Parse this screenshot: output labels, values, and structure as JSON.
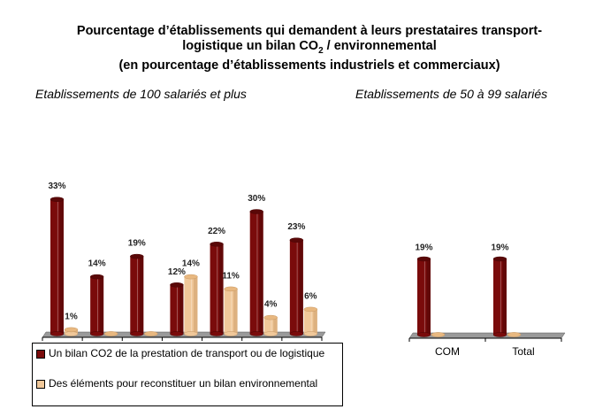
{
  "title": {
    "line1": "Pourcentage d’établissements qui demandent à leurs prestataires transport-",
    "line2_a": "logistique un bilan CO",
    "line2_sub": "2",
    "line2_b": " / environnemental",
    "line3": "(en pourcentage d’établissements industriels et commerciaux)"
  },
  "colors": {
    "series1": "#7a0b0b",
    "series2": "#f0c89a"
  },
  "chart_data": [
    {
      "type": "bar",
      "title": "Etablissements de 100 salariés et plus",
      "categories": [
        "",
        "",
        "",
        "",
        "",
        "",
        ""
      ],
      "series": [
        {
          "name": "Un bilan CO2 de la prestation de transport ou de logistique",
          "values": [
            33,
            14,
            19,
            12,
            22,
            30,
            23
          ],
          "labels": [
            "33%",
            "14%",
            "19%",
            "12%",
            "22%",
            "30%",
            "23%"
          ]
        },
        {
          "name": "Des éléments pour reconstituer un bilan environnemental",
          "values": [
            1,
            0,
            0,
            14,
            11,
            4,
            6
          ],
          "labels": [
            "1%",
            "",
            "",
            "14%",
            "11%",
            "4%",
            "6%"
          ]
        }
      ],
      "ylim": [
        0,
        35
      ]
    },
    {
      "type": "bar",
      "title": "Etablissements de 50 à 99 salariés",
      "categories": [
        "COM",
        "Total"
      ],
      "series": [
        {
          "name": "Un bilan CO2 de la prestation de transport ou de logistique",
          "values": [
            19,
            19
          ],
          "labels": [
            "19%",
            "19%"
          ]
        },
        {
          "name": "Des éléments pour reconstituer un bilan environnemental",
          "values": [
            0,
            0
          ],
          "labels": [
            "",
            ""
          ]
        }
      ],
      "ylim": [
        0,
        35
      ]
    }
  ],
  "legend": {
    "item1": "Un bilan CO2 de la prestation de transport ou de logistique",
    "item2": "Des éléments pour reconstituer un bilan environnemental"
  }
}
